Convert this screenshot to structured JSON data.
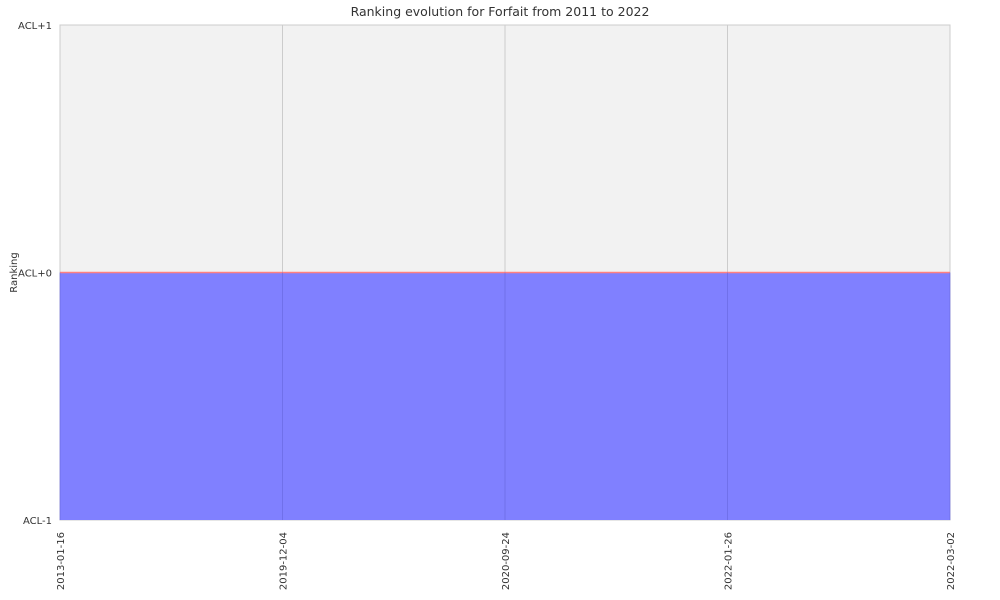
{
  "chart_data": {
    "type": "area",
    "title": "Ranking evolution for Forfait  from 2011 to 2022",
    "ylabel": "Ranking",
    "xlabel": "",
    "categories": [
      "2013-01-16",
      "2019-12-04",
      "2020-09-24",
      "2022-01-26",
      "2022-03-02"
    ],
    "y_ticks": [
      "ACL+1",
      "ACL+0",
      "ACL-1"
    ],
    "ylim": [
      -1,
      1
    ],
    "series": [
      {
        "values": [
          0,
          0,
          0,
          0,
          0
        ]
      }
    ],
    "grid": true,
    "colors": {
      "area_fill": "#8080ff",
      "line": "#ff8080",
      "plot_background": "#f2f2f2",
      "grid": "#cccccc"
    }
  }
}
